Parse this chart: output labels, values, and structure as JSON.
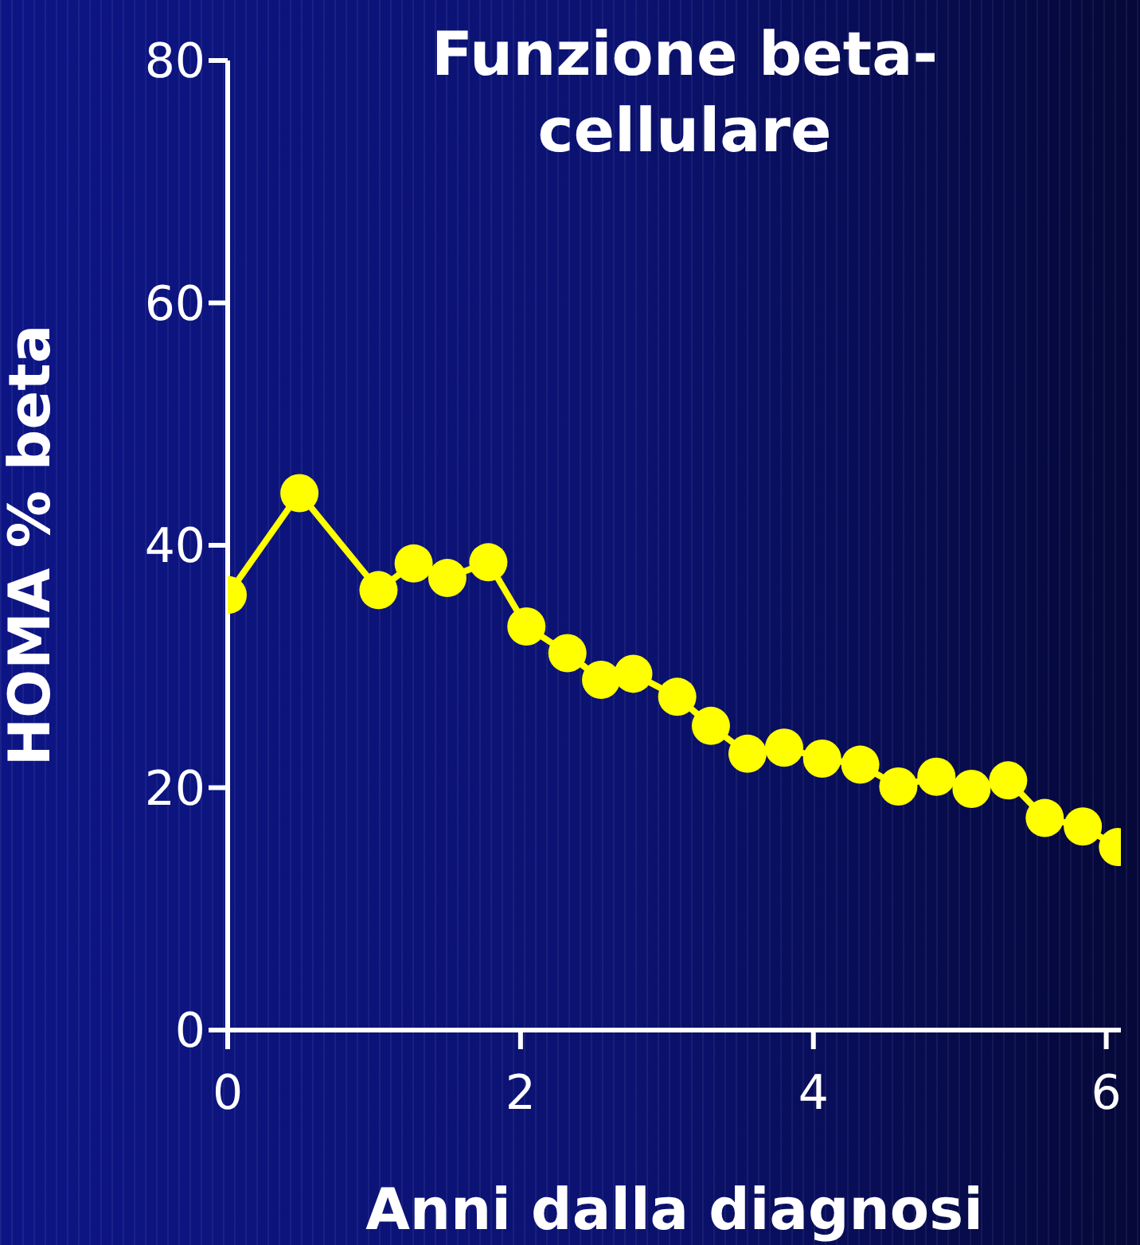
{
  "chart_data": {
    "type": "line",
    "title": "Funzione beta-\ncellulare",
    "xlabel": "Anni dalla diagnosi",
    "ylabel": "HOMA % beta",
    "xlim": [
      0,
      6.1
    ],
    "xticks": [
      0,
      2,
      4,
      6
    ],
    "ylim": [
      0,
      80
    ],
    "yticks": [
      0,
      20,
      40,
      60,
      80
    ],
    "grid": false,
    "legend": false,
    "marker": "circle",
    "line_style": "solid",
    "series": [
      {
        "color": "#ffff00",
        "x": [
          0,
          0.49,
          1.03,
          1.27,
          1.5,
          1.78,
          2.04,
          2.32,
          2.55,
          2.77,
          3.07,
          3.3,
          3.55,
          3.8,
          4.06,
          4.32,
          4.58,
          4.84,
          5.08,
          5.33,
          5.58,
          5.84,
          6.08
        ],
        "values": [
          35.9,
          44.3,
          36.3,
          38.5,
          37.3,
          38.6,
          33.3,
          31.1,
          28.9,
          29.4,
          27.5,
          25.1,
          22.8,
          23.3,
          22.4,
          21.9,
          20.1,
          20.9,
          19.9,
          20.6,
          17.5,
          16.8,
          15.1
        ]
      }
    ]
  }
}
